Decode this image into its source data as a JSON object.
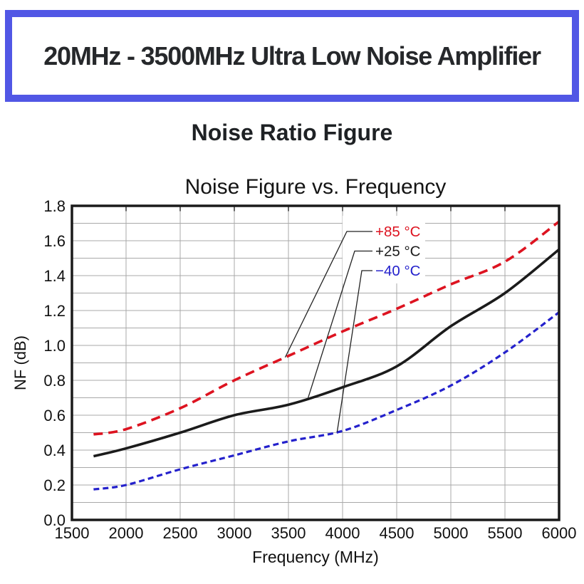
{
  "header": {
    "title": "20MHz - 3500MHz Ultra Low Noise Amplifier",
    "border_color": "#5157E5"
  },
  "subtitle": "Noise Ratio Figure",
  "chart_data": {
    "type": "line",
    "title": "Noise Figure vs. Frequency",
    "xlabel": "Frequency (MHz)",
    "ylabel": "NF (dB)",
    "xlim": [
      1500,
      6000
    ],
    "ylim": [
      0,
      1.8
    ],
    "x_ticks": [
      "1500",
      "2000",
      "2500",
      "3000",
      "3500",
      "4000",
      "4500",
      "5000",
      "5500",
      "6000"
    ],
    "y_ticks": [
      "0.0",
      "0.2",
      "0.4",
      "0.6",
      "0.8",
      "1.0",
      "1.2",
      "1.4",
      "1.6",
      "1.8"
    ],
    "y_minor_step": 0.1,
    "grid": true,
    "grid_color": "#A9A9A9",
    "axis_color": "#1A1A1A",
    "legend_position": "inside-upper-right-with-leader-lines",
    "x": [
      1700,
      2000,
      2500,
      3000,
      3500,
      4000,
      4500,
      5000,
      5500,
      6000
    ],
    "series": [
      {
        "name": "+85 °C",
        "color": "#DD1320",
        "style": "dashed-long",
        "dash": "13 8",
        "width": 3.6,
        "callout_x": 3470,
        "values": [
          0.49,
          0.52,
          0.64,
          0.8,
          0.94,
          1.08,
          1.21,
          1.35,
          1.48,
          1.71
        ]
      },
      {
        "name": "+25 °C",
        "color": "#1B1B1B",
        "style": "solid",
        "dash": "",
        "width": 3.6,
        "callout_x": 3680,
        "values": [
          0.365,
          0.41,
          0.5,
          0.6,
          0.66,
          0.76,
          0.88,
          1.11,
          1.3,
          1.55
        ]
      },
      {
        "name": "−40 °C",
        "color": "#2421CC",
        "style": "dashed-short",
        "dash": "8 5",
        "width": 3.2,
        "callout_x": 3950,
        "values": [
          0.175,
          0.2,
          0.29,
          0.37,
          0.45,
          0.51,
          0.63,
          0.77,
          0.96,
          1.19
        ]
      }
    ]
  }
}
